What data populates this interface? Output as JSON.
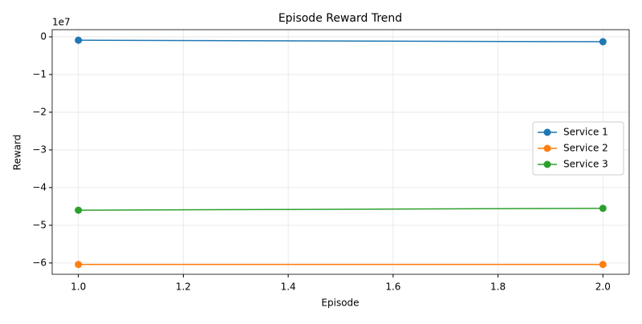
{
  "chart_data": {
    "type": "line",
    "title": "Episode Reward Trend",
    "x_label": "Episode",
    "y_label": "Reward",
    "y_offset_label": "1e7",
    "x": [
      1,
      2
    ],
    "series": [
      {
        "name": "Service 1",
        "color": "#1f77b4",
        "values": [
          -0.09,
          -0.13
        ]
      },
      {
        "name": "Service 2",
        "color": "#ff7f0e",
        "values": [
          -6.04,
          -6.04
        ]
      },
      {
        "name": "Service 3",
        "color": "#2ca02c",
        "values": [
          -4.6,
          -4.55
        ]
      }
    ],
    "xlim": [
      0.95,
      2.05
    ],
    "xticks": [
      {
        "value": 1,
        "label": "1.0"
      },
      {
        "value": 1.2,
        "label": "1.2"
      },
      {
        "value": 1.4,
        "label": "1.4"
      },
      {
        "value": 1.6,
        "label": "1.6"
      },
      {
        "value": 1.8,
        "label": "1.8"
      },
      {
        "value": 2,
        "label": "2.0"
      }
    ],
    "ylim": [
      -6.3,
      0.19
    ],
    "yticks": [
      0,
      {
        "value": -1,
        "label": "−1"
      },
      {
        "value": -2,
        "label": "−2"
      },
      {
        "value": -3,
        "label": "−3"
      },
      {
        "value": -4,
        "label": "−4"
      },
      {
        "value": -5,
        "label": "−5"
      },
      {
        "value": -6,
        "label": "−6"
      }
    ],
    "grid": true,
    "legend": "right"
  }
}
